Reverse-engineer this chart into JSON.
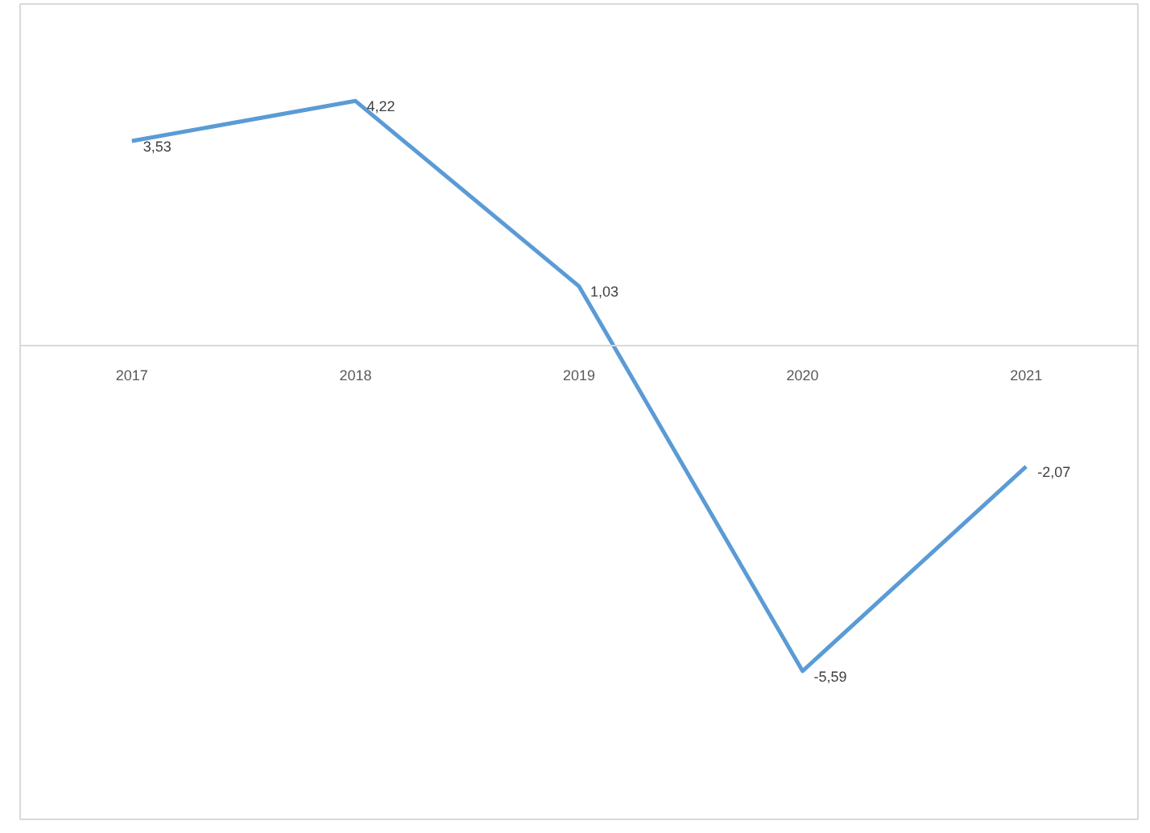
{
  "chart_data": {
    "type": "line",
    "categories": [
      "2017",
      "2018",
      "2019",
      "2020",
      "2021"
    ],
    "series": [
      {
        "color": "#5b9bd5",
        "values": [
          3.53,
          4.22,
          1.03,
          -5.59,
          -2.07
        ],
        "value_labels": [
          "3,53",
          "4,22",
          "1,03",
          "-5,59",
          "-2,07"
        ]
      }
    ],
    "grid": false,
    "marker": "none",
    "line_style": "solid"
  }
}
